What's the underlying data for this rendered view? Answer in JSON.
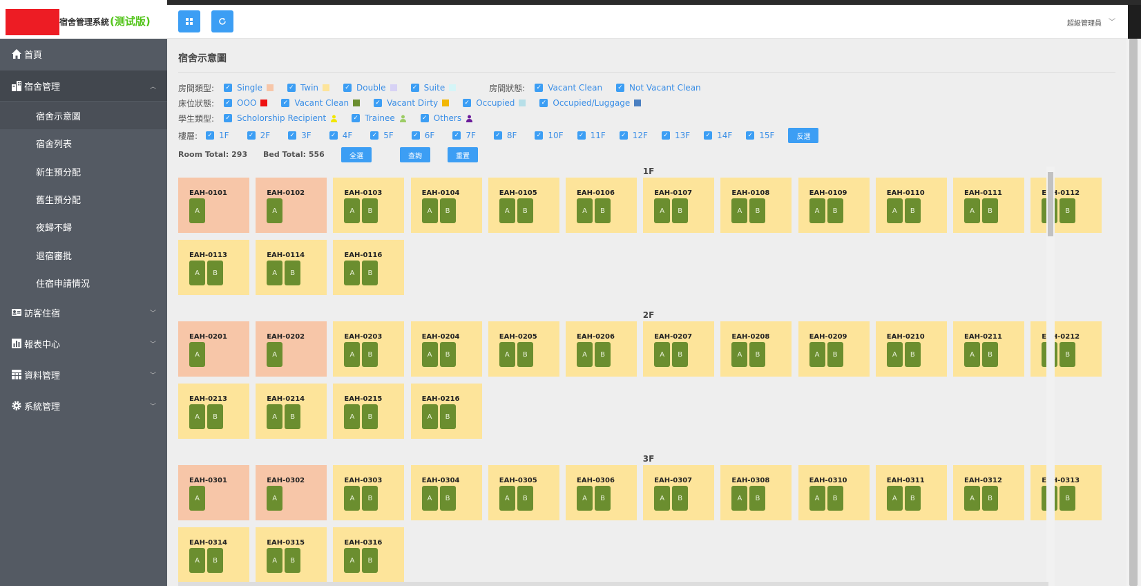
{
  "app": {
    "title": "宿舍管理系統",
    "badge": "(测试版)"
  },
  "colors": {
    "sidebar_bg": "#545a63",
    "primary": "#3c9ef4",
    "single_room": "#f7c6a8",
    "twin_room": "#fde49a",
    "bed": "#6b8e2f",
    "logo_red": "#ed1c24",
    "badge_green": "#52c41a"
  },
  "sidebar": {
    "items": [
      {
        "label": "首頁",
        "icon": "home-icon"
      },
      {
        "label": "宿舍管理",
        "icon": "buildings-icon"
      },
      {
        "label": "訪客住宿",
        "icon": "visitor-icon"
      },
      {
        "label": "報表中心",
        "icon": "chart-icon"
      },
      {
        "label": "資料管理",
        "icon": "table-icon"
      },
      {
        "label": "系統管理",
        "icon": "gear-icon"
      }
    ],
    "sub_items": [
      "宿舍示意圖",
      "宿舍列表",
      "新生預分配",
      "舊生預分配",
      "夜歸不歸",
      "退宿審批",
      "住宿申請情況"
    ]
  },
  "header": {
    "user": "超級管理員",
    "buttons": [
      "grid-icon",
      "refresh-icon"
    ]
  },
  "page": {
    "title": "宿舍示意圖"
  },
  "filters": {
    "room_type_label": "房間類型:",
    "room_types": [
      {
        "label": "Single",
        "color": "#f7c6a8"
      },
      {
        "label": "Twin",
        "color": "#fde49a"
      },
      {
        "label": "Double",
        "color": "#d7d2f5"
      },
      {
        "label": "Suite",
        "color": "#d5f5f7"
      }
    ],
    "room_status_label": "房間狀態:",
    "room_status": [
      "Vacant Clean",
      "Not Vacant Clean"
    ],
    "bed_status_label": "床位狀態:",
    "bed_status": [
      {
        "label": "OOO",
        "color": "#ee1111"
      },
      {
        "label": "Vacant Clean",
        "color": "#6b8e2f"
      },
      {
        "label": "Vacant Dirty",
        "color": "#f2b705"
      },
      {
        "label": "Occupied",
        "color": "#b7dfe8"
      },
      {
        "label": "Occupied/Luggage",
        "color": "#4a7fc1"
      }
    ],
    "student_type_label": "學生類型:",
    "student_types": [
      {
        "label": "Scholorship Recipient",
        "color": "#f2e600"
      },
      {
        "label": "Trainee",
        "color": "#9ccc65"
      },
      {
        "label": "Others",
        "color": "#6a1b9a"
      }
    ],
    "floor_label": "樓層:",
    "floors": [
      "1F",
      "2F",
      "3F",
      "4F",
      "5F",
      "6F",
      "7F",
      "8F",
      "10F",
      "11F",
      "12F",
      "13F",
      "14F",
      "15F"
    ],
    "invert_button": "反選"
  },
  "totals": {
    "room_total": "Room Total: 293",
    "bed_total": "Bed Total: 556",
    "select_all": "全選",
    "query": "查詢",
    "reset": "重置"
  },
  "floors": [
    {
      "label": "1F",
      "rooms": [
        {
          "id": "EAH-0101",
          "type": "single",
          "beds": [
            "A"
          ]
        },
        {
          "id": "EAH-0102",
          "type": "single",
          "beds": [
            "A"
          ]
        },
        {
          "id": "EAH-0103",
          "type": "twin",
          "beds": [
            "A",
            "B"
          ]
        },
        {
          "id": "EAH-0104",
          "type": "twin",
          "beds": [
            "A",
            "B"
          ]
        },
        {
          "id": "EAH-0105",
          "type": "twin",
          "beds": [
            "A",
            "B"
          ]
        },
        {
          "id": "EAH-0106",
          "type": "twin",
          "beds": [
            "A",
            "B"
          ]
        },
        {
          "id": "EAH-0107",
          "type": "twin",
          "beds": [
            "A",
            "B"
          ]
        },
        {
          "id": "EAH-0108",
          "type": "twin",
          "beds": [
            "A",
            "B"
          ]
        },
        {
          "id": "EAH-0109",
          "type": "twin",
          "beds": [
            "A",
            "B"
          ]
        },
        {
          "id": "EAH-0110",
          "type": "twin",
          "beds": [
            "A",
            "B"
          ]
        },
        {
          "id": "EAH-0111",
          "type": "twin",
          "beds": [
            "A",
            "B"
          ]
        },
        {
          "id": "EAH-0112",
          "type": "twin",
          "beds": [
            "A",
            "B"
          ]
        },
        {
          "id": "EAH-0113",
          "type": "twin",
          "beds": [
            "A",
            "B"
          ]
        },
        {
          "id": "EAH-0114",
          "type": "twin",
          "beds": [
            "A",
            "B"
          ]
        },
        {
          "id": "EAH-0116",
          "type": "twin",
          "beds": [
            "A",
            "B"
          ]
        }
      ]
    },
    {
      "label": "2F",
      "rooms": [
        {
          "id": "EAH-0201",
          "type": "single",
          "beds": [
            "A"
          ]
        },
        {
          "id": "EAH-0202",
          "type": "single",
          "beds": [
            "A"
          ]
        },
        {
          "id": "EAH-0203",
          "type": "twin",
          "beds": [
            "A",
            "B"
          ]
        },
        {
          "id": "EAH-0204",
          "type": "twin",
          "beds": [
            "A",
            "B"
          ]
        },
        {
          "id": "EAH-0205",
          "type": "twin",
          "beds": [
            "A",
            "B"
          ]
        },
        {
          "id": "EAH-0206",
          "type": "twin",
          "beds": [
            "A",
            "B"
          ]
        },
        {
          "id": "EAH-0207",
          "type": "twin",
          "beds": [
            "A",
            "B"
          ]
        },
        {
          "id": "EAH-0208",
          "type": "twin",
          "beds": [
            "A",
            "B"
          ]
        },
        {
          "id": "EAH-0209",
          "type": "twin",
          "beds": [
            "A",
            "B"
          ]
        },
        {
          "id": "EAH-0210",
          "type": "twin",
          "beds": [
            "A",
            "B"
          ]
        },
        {
          "id": "EAH-0211",
          "type": "twin",
          "beds": [
            "A",
            "B"
          ]
        },
        {
          "id": "EAH-0212",
          "type": "twin",
          "beds": [
            "A",
            "B"
          ]
        },
        {
          "id": "EAH-0213",
          "type": "twin",
          "beds": [
            "A",
            "B"
          ]
        },
        {
          "id": "EAH-0214",
          "type": "twin",
          "beds": [
            "A",
            "B"
          ]
        },
        {
          "id": "EAH-0215",
          "type": "twin",
          "beds": [
            "A",
            "B"
          ]
        },
        {
          "id": "EAH-0216",
          "type": "twin",
          "beds": [
            "A",
            "B"
          ]
        }
      ]
    },
    {
      "label": "3F",
      "rooms": [
        {
          "id": "EAH-0301",
          "type": "single",
          "beds": [
            "A"
          ]
        },
        {
          "id": "EAH-0302",
          "type": "single",
          "beds": [
            "A"
          ]
        },
        {
          "id": "EAH-0303",
          "type": "twin",
          "beds": [
            "A",
            "B"
          ]
        },
        {
          "id": "EAH-0304",
          "type": "twin",
          "beds": [
            "A",
            "B"
          ]
        },
        {
          "id": "EAH-0305",
          "type": "twin",
          "beds": [
            "A",
            "B"
          ]
        },
        {
          "id": "EAH-0306",
          "type": "twin",
          "beds": [
            "A",
            "B"
          ]
        },
        {
          "id": "EAH-0307",
          "type": "twin",
          "beds": [
            "A",
            "B"
          ]
        },
        {
          "id": "EAH-0308",
          "type": "twin",
          "beds": [
            "A",
            "B"
          ]
        },
        {
          "id": "EAH-0310",
          "type": "twin",
          "beds": [
            "A",
            "B"
          ]
        },
        {
          "id": "EAH-0311",
          "type": "twin",
          "beds": [
            "A",
            "B"
          ]
        },
        {
          "id": "EAH-0312",
          "type": "twin",
          "beds": [
            "A",
            "B"
          ]
        },
        {
          "id": "EAH-0313",
          "type": "twin",
          "beds": [
            "A",
            "B"
          ]
        },
        {
          "id": "EAH-0314",
          "type": "twin",
          "beds": [
            "A",
            "B"
          ]
        },
        {
          "id": "EAH-0315",
          "type": "twin",
          "beds": [
            "A",
            "B"
          ]
        },
        {
          "id": "EAH-0316",
          "type": "twin",
          "beds": [
            "A",
            "B"
          ]
        }
      ]
    }
  ]
}
